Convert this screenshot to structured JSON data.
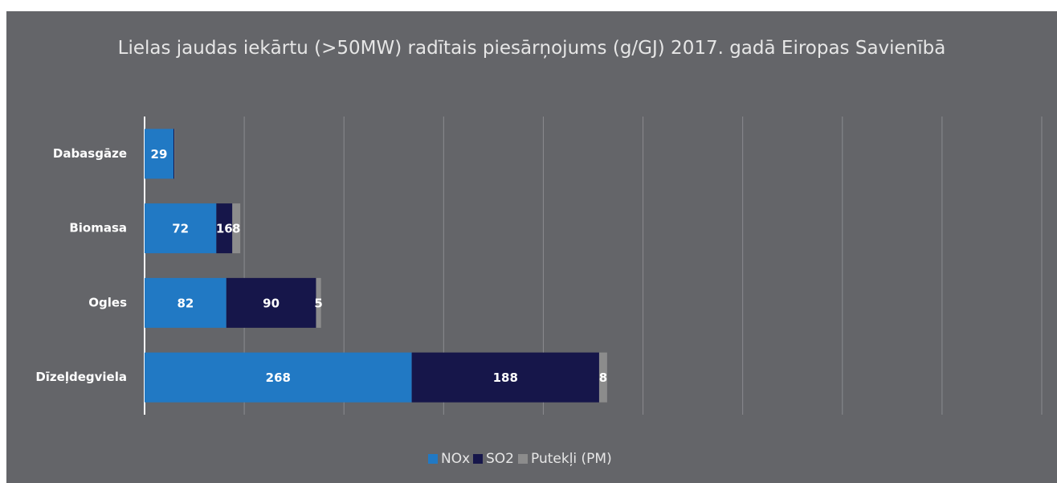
{
  "chart_data": {
    "type": "stacked-barh",
    "title": "Lielas jaudas iekārtu (>50MW) radītais piesārņojums (g/GJ) 2017. gadā Eiropas Savienībā",
    "categories": [
      "Dabasgāze",
      "Biomasa",
      "Ogles",
      "Dīzeļdegviela"
    ],
    "series": [
      {
        "name": "NOx",
        "color": "#2179c4",
        "values": [
          29,
          72,
          82,
          268
        ],
        "value_labels": [
          "29",
          "72",
          "82",
          "268"
        ]
      },
      {
        "name": "SO2",
        "color": "#16164a",
        "values": [
          1,
          16,
          90,
          188
        ],
        "value_labels": [
          null,
          "16",
          "90",
          "188"
        ]
      },
      {
        "name": "Putekļi (PM)",
        "color": "#8c8c8c",
        "values": [
          0.5,
          8,
          5,
          8
        ],
        "value_labels": [
          null,
          "8",
          "5",
          "8"
        ]
      }
    ],
    "xlim": [
      0,
      900
    ],
    "xticks": [
      0,
      100,
      200,
      300,
      400,
      500,
      600,
      700,
      800,
      900
    ],
    "grid": true,
    "show_tick_labels": false,
    "legend": "bottom"
  }
}
